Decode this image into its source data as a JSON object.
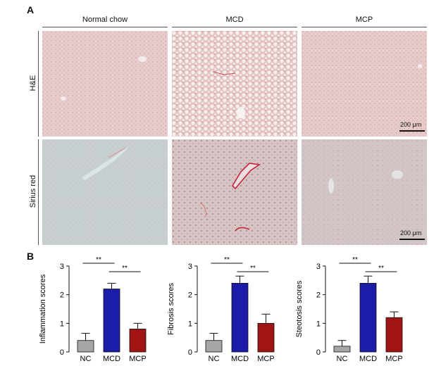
{
  "panel_a": {
    "letter": "A",
    "columns": [
      "Normal chow",
      "MCD",
      "MCP"
    ],
    "rows": [
      "H&E",
      "Sirius red"
    ],
    "scale_bar": "200 μm",
    "colors": {
      "he_normal": "#e8cccd",
      "he_mcd": "#ecd7d6",
      "he_mcp": "#e7cbcb",
      "sr_normal": "#c7cfd0",
      "sr_mcd": "#d6c3c3",
      "sr_mcp": "#d3c6c7"
    }
  },
  "panel_b": {
    "letter": "B",
    "significance": "**"
  },
  "chart_data": [
    {
      "type": "bar",
      "categories": [
        "NC",
        "MCD",
        "MCP"
      ],
      "values": [
        0.4,
        2.2,
        0.8
      ],
      "errors": [
        0.25,
        0.2,
        0.2
      ],
      "ylabel": "Inflammation scores",
      "ylim": [
        0,
        3
      ],
      "yticks": [
        0,
        1,
        2,
        3
      ],
      "colors": [
        "#a6a6a6",
        "#1c1ca8",
        "#a01414"
      ]
    },
    {
      "type": "bar",
      "categories": [
        "NC",
        "MCD",
        "MCP"
      ],
      "values": [
        0.4,
        2.4,
        1.0
      ],
      "errors": [
        0.25,
        0.25,
        0.32
      ],
      "ylabel": "Fibrosis scores",
      "ylim": [
        0,
        3
      ],
      "yticks": [
        0,
        1,
        2,
        3
      ],
      "colors": [
        "#a6a6a6",
        "#1c1ca8",
        "#a01414"
      ]
    },
    {
      "type": "bar",
      "categories": [
        "NC",
        "MCD",
        "MCP"
      ],
      "values": [
        0.2,
        2.4,
        1.2
      ],
      "errors": [
        0.2,
        0.25,
        0.2
      ],
      "ylabel": "Steotosis scores",
      "ylim": [
        0,
        3
      ],
      "yticks": [
        0,
        1,
        2,
        3
      ],
      "colors": [
        "#a6a6a6",
        "#1c1ca8",
        "#a01414"
      ]
    }
  ]
}
